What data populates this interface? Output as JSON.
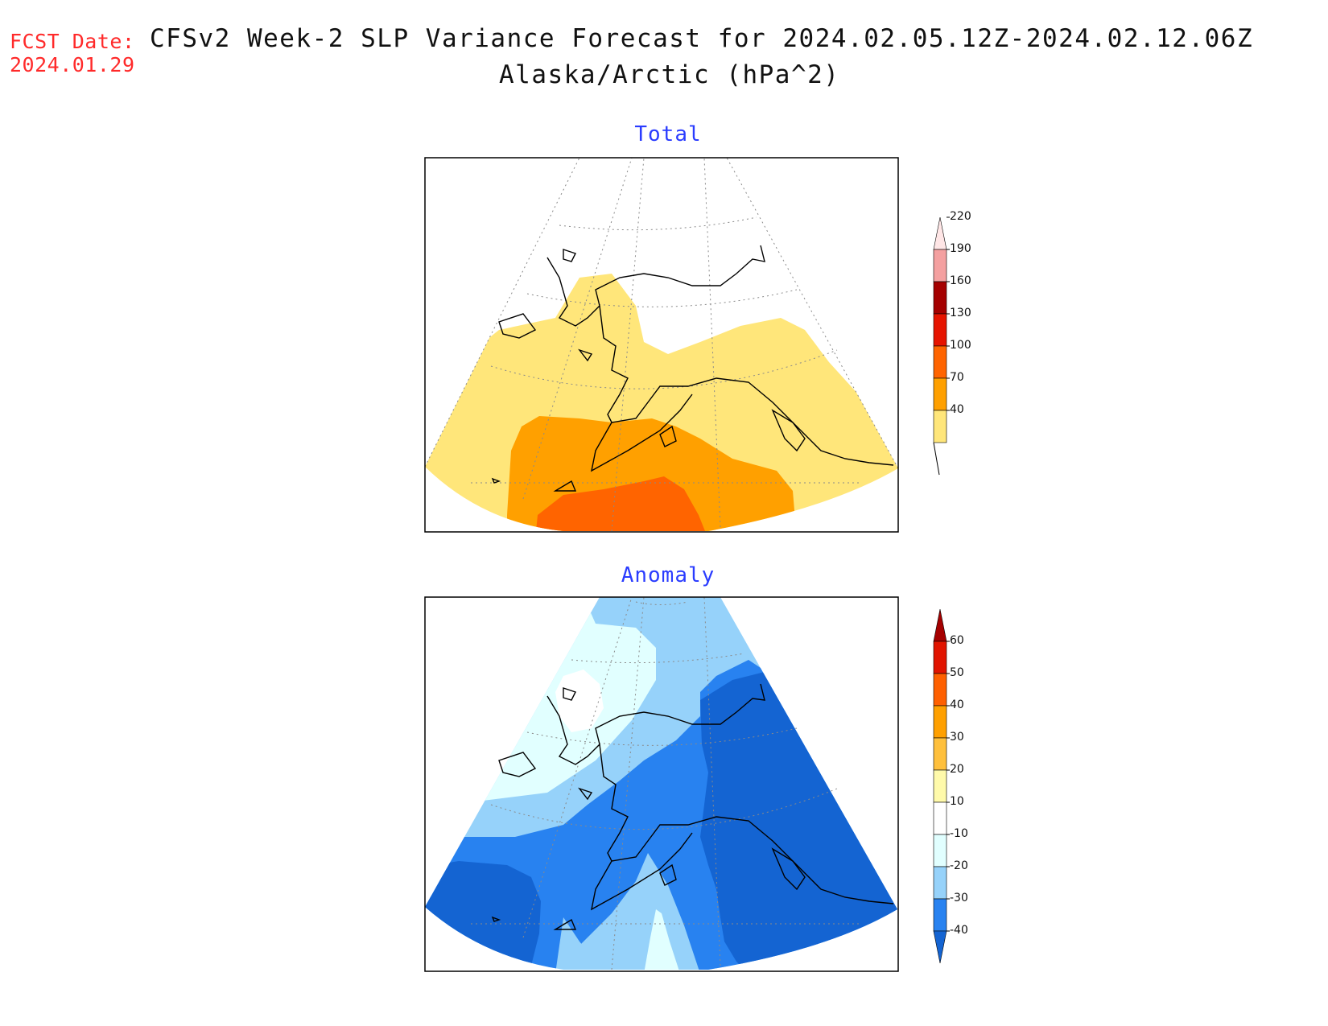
{
  "header": {
    "fcst_label": "FCST Date:",
    "fcst_date": "2024.01.29",
    "title_line1": "CFSv2 Week-2 SLP Variance Forecast for 2024.02.05.12Z-2024.02.12.06Z",
    "title_line2": "Alaska/Arctic (hPa^2)"
  },
  "panels": {
    "total": {
      "title": "Total",
      "colorbar": {
        "levels": [
          "40",
          "70",
          "100",
          "130",
          "160",
          "190",
          "220"
        ],
        "colors": [
          "#ffe67a",
          "#ffa000",
          "#ff6400",
          "#e61400",
          "#a50000",
          "#f4a0a0",
          "#ffe6e6"
        ]
      }
    },
    "anomaly": {
      "title": "Anomaly",
      "colorbar": {
        "levels": [
          "-40",
          "-30",
          "-20",
          "-10",
          "10",
          "20",
          "30",
          "40",
          "50",
          "60"
        ],
        "colors": [
          "#1464d2",
          "#2882f0",
          "#96d2fa",
          "#e1ffff",
          "#ffffff",
          "#fffaaa",
          "#ffc03c",
          "#ffa000",
          "#ff6000",
          "#e11400",
          "#a50000"
        ]
      }
    }
  }
}
